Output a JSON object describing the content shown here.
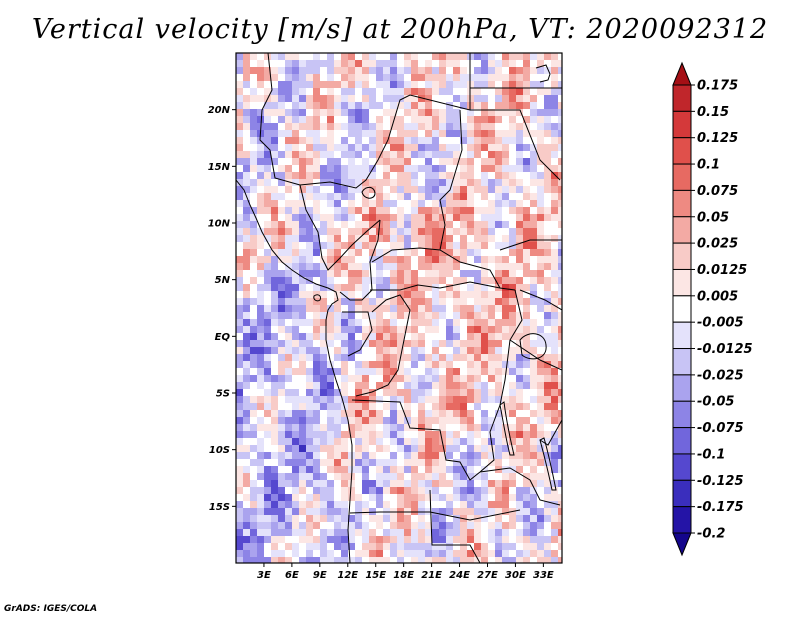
{
  "title": "Vertical velocity [m/s] at 200hPa, VT: 2020092312",
  "credit": "GrADS: IGES/COLA",
  "map": {
    "lon_range": [
      0,
      35
    ],
    "lat_range": [
      -20,
      25
    ],
    "lat_ticks": [
      {
        "value": 20,
        "label": "20N"
      },
      {
        "value": 15,
        "label": "15N"
      },
      {
        "value": 10,
        "label": "10N"
      },
      {
        "value": 5,
        "label": "5N"
      },
      {
        "value": 0,
        "label": "EQ"
      },
      {
        "value": -5,
        "label": "5S"
      },
      {
        "value": -10,
        "label": "10S"
      },
      {
        "value": -15,
        "label": "15S"
      }
    ],
    "lon_ticks": [
      {
        "value": 3,
        "label": "3E"
      },
      {
        "value": 6,
        "label": "6E"
      },
      {
        "value": 9,
        "label": "9E"
      },
      {
        "value": 12,
        "label": "12E"
      },
      {
        "value": 15,
        "label": "15E"
      },
      {
        "value": 18,
        "label": "18E"
      },
      {
        "value": 21,
        "label": "21E"
      },
      {
        "value": 24,
        "label": "24E"
      },
      {
        "value": 27,
        "label": "27E"
      },
      {
        "value": 30,
        "label": "30E"
      },
      {
        "value": 33,
        "label": "33E"
      }
    ]
  },
  "colorbar": {
    "labels": [
      "0.175",
      "0.15",
      "0.125",
      "0.1",
      "0.075",
      "0.05",
      "0.025",
      "0.0125",
      "0.005",
      "-0.005",
      "-0.0125",
      "-0.025",
      "-0.05",
      "-0.075",
      "-0.1",
      "-0.125",
      "-0.175",
      "-0.2"
    ],
    "colors": [
      "#a50f15",
      "#c0262b",
      "#d4393a",
      "#e0504b",
      "#e76a62",
      "#ee8a82",
      "#f3aaa4",
      "#f8cbc7",
      "#fce6e4",
      "#ffffff",
      "#e4e2fb",
      "#c8c4f5",
      "#aaa3ee",
      "#8d84e6",
      "#7166dc",
      "#5548cf",
      "#3a2ebd",
      "#2414a6",
      "#14068c"
    ]
  }
}
